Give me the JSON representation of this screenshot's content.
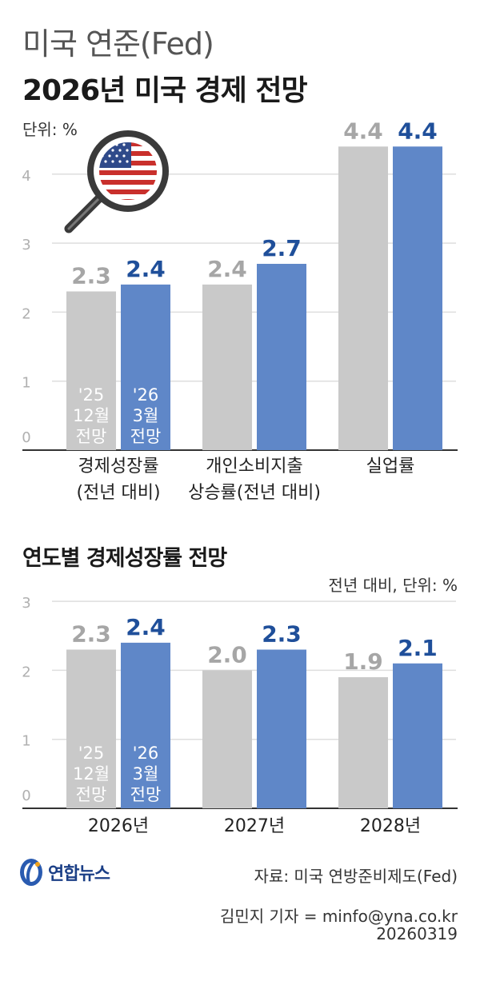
{
  "header": {
    "subtitle": "미국 연준(Fed)",
    "title": "2026년 미국 경제 전망"
  },
  "colors": {
    "prev_bar": "#c9c9c9",
    "new_bar": "#5f87c8",
    "prev_label": "#a6a6a6",
    "new_label": "#1f4f9a",
    "grid": "#dedede",
    "axis": "#333333"
  },
  "icons": [
    "magnifier-us-flag-icon",
    "yonhap-logo-icon"
  ],
  "chart_data": [
    {
      "type": "bar",
      "unit_label": "단위: %",
      "categories": [
        [
          "경제성장률",
          "(전년 대비)"
        ],
        [
          "개인소비지출",
          "상승률(전년 대비)"
        ],
        [
          "실업률"
        ]
      ],
      "series": [
        {
          "name": "'25 12월 전망",
          "values": [
            2.3,
            2.4,
            4.4
          ],
          "value_labels": [
            "2.3",
            "2.4",
            "4.4"
          ]
        },
        {
          "name": "'26 3월 전망",
          "values": [
            2.4,
            2.7,
            4.4
          ],
          "value_labels": [
            "2.4",
            "2.7",
            "4.4"
          ]
        }
      ],
      "bar_inner_labels": [
        [
          "'25",
          "12월",
          "전망"
        ],
        [
          "'26",
          "3월",
          "전망"
        ]
      ],
      "yticks": [
        "0",
        "1",
        "2",
        "3",
        "4"
      ],
      "ylim": [
        0,
        4.6
      ],
      "grid": true
    },
    {
      "type": "bar",
      "title": "연도별 경제성장률 전망",
      "unit_label": "전년 대비, 단위: %",
      "categories": [
        [
          "2026년"
        ],
        [
          "2027년"
        ],
        [
          "2028년"
        ]
      ],
      "series": [
        {
          "name": "'25 12월 전망",
          "values": [
            2.3,
            2.0,
            1.9
          ],
          "value_labels": [
            "2.3",
            "2.0",
            "1.9"
          ]
        },
        {
          "name": "'26 3월 전망",
          "values": [
            2.4,
            2.3,
            2.1
          ],
          "value_labels": [
            "2.4",
            "2.3",
            "2.1"
          ]
        }
      ],
      "bar_inner_labels": [
        [
          "'25",
          "12월",
          "전망"
        ],
        [
          "'26",
          "3월",
          "전망"
        ]
      ],
      "yticks": [
        "0",
        "1",
        "2",
        "3"
      ],
      "ylim": [
        0,
        3
      ],
      "grid": true
    }
  ],
  "footer": {
    "logo_text": "연합뉴스",
    "source": "자료: 미국 연방준비제도(Fed)",
    "reporter": "김민지 기자 = minfo@yna.co.kr",
    "date": "20260319"
  }
}
